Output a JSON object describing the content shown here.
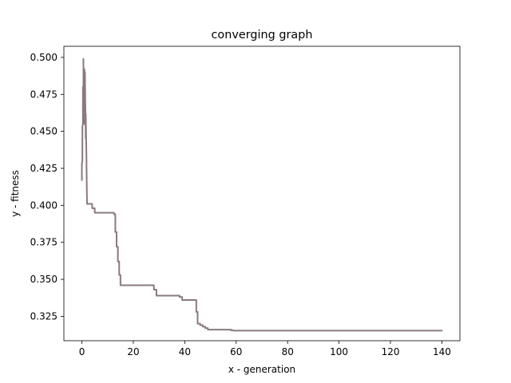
{
  "chart_data": {
    "type": "line",
    "title": "converging graph",
    "xlabel": "x - generation",
    "ylabel": "y - fitness",
    "xlim": [
      -7,
      147
    ],
    "ylim": [
      0.3085,
      0.5075
    ],
    "xticks": [
      0,
      20,
      40,
      60,
      80,
      100,
      120,
      140
    ],
    "yticks": [
      0.325,
      0.35,
      0.375,
      0.4,
      0.425,
      0.45,
      0.475,
      0.5
    ],
    "xtick_labels": [
      "0",
      "20",
      "40",
      "60",
      "80",
      "100",
      "120",
      "140"
    ],
    "ytick_labels": [
      "0.325",
      "0.350",
      "0.375",
      "0.400",
      "0.425",
      "0.450",
      "0.475",
      "0.500"
    ],
    "grid": false,
    "legend": "none",
    "line_color": "#8a7a80",
    "series": [
      {
        "x": [
          0,
          0,
          0.2,
          0.2,
          0.4,
          0.4,
          0.6,
          0.6,
          0.8,
          0.8,
          1.0,
          1.0,
          1.2,
          1.2,
          1.5,
          1.5,
          1.8,
          1.8,
          2,
          2,
          3,
          4,
          4,
          5,
          5,
          6,
          7,
          8,
          9,
          10,
          11,
          12,
          12.5,
          12.5,
          13,
          13,
          13.5,
          13.5,
          14,
          14,
          14.5,
          14.5,
          15,
          15,
          20,
          25,
          28,
          28,
          29,
          29,
          30,
          33,
          35,
          38,
          38,
          39,
          39,
          40,
          42,
          44,
          44.5,
          44.5,
          45,
          45,
          46,
          46,
          47,
          47,
          48,
          48,
          49,
          49,
          55,
          58,
          58,
          59,
          59,
          70,
          80,
          90,
          100,
          110,
          120,
          130,
          140
        ],
        "y": [
          0.417,
          0.428,
          0.43,
          0.453,
          0.455,
          0.48,
          0.462,
          0.499,
          0.46,
          0.478,
          0.455,
          0.492,
          0.46,
          0.49,
          0.445,
          0.462,
          0.43,
          0.427,
          0.401,
          0.401,
          0.401,
          0.401,
          0.398,
          0.398,
          0.395,
          0.395,
          0.395,
          0.395,
          0.395,
          0.395,
          0.395,
          0.395,
          0.395,
          0.394,
          0.394,
          0.382,
          0.382,
          0.372,
          0.372,
          0.362,
          0.362,
          0.353,
          0.353,
          0.346,
          0.346,
          0.346,
          0.346,
          0.343,
          0.343,
          0.339,
          0.339,
          0.339,
          0.339,
          0.339,
          0.338,
          0.338,
          0.336,
          0.336,
          0.336,
          0.336,
          0.336,
          0.328,
          0.328,
          0.32,
          0.32,
          0.319,
          0.319,
          0.318,
          0.318,
          0.317,
          0.317,
          0.316,
          0.316,
          0.316,
          0.3155,
          0.3155,
          0.3153,
          0.3153,
          0.3153,
          0.3153,
          0.3153,
          0.3153,
          0.3153,
          0.3153,
          0.3153
        ]
      }
    ]
  }
}
